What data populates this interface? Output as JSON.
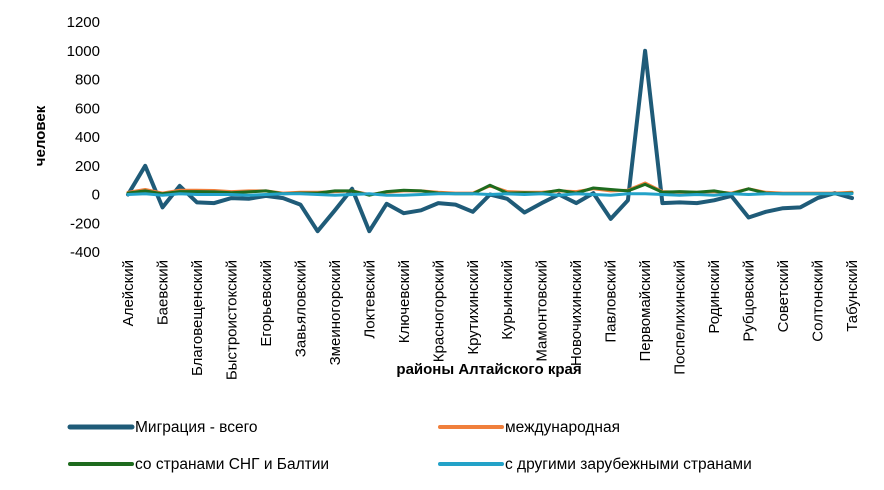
{
  "chart_data": {
    "type": "line",
    "xlabel": "районы Алтайского края",
    "ylabel": "человек",
    "ylim": [
      -400,
      1200
    ],
    "yticks": [
      -400,
      -200,
      0,
      200,
      400,
      600,
      800,
      1000,
      1200
    ],
    "grid": false,
    "legend_position": "bottom",
    "categories": [
      "Алейский",
      "",
      "Баевский",
      "",
      "Благовещенский",
      "",
      "Быстроистокский",
      "",
      "Егорьевский",
      "",
      "Завьяловский",
      "",
      "Змеиногорский",
      "",
      "Локтевский",
      "",
      "Ключевский",
      "",
      "Красногорский",
      "",
      "Крутихинский",
      "",
      "Курьинский",
      "",
      "Мамонтовский",
      "",
      "Новочихинский",
      "",
      "Павловский",
      "",
      "Первомайский",
      "",
      "Поспелихинский",
      "",
      "Родинский",
      "",
      "Рубцовский",
      "",
      "Советский",
      "",
      "Солтонский",
      "",
      "Табунский"
    ],
    "series": [
      {
        "name": "Миграция - всего",
        "color": "#1f5b78",
        "values": [
          0,
          200,
          -90,
          60,
          -55,
          -60,
          -25,
          -30,
          -10,
          -25,
          -70,
          -255,
          -110,
          40,
          -255,
          -65,
          -130,
          -110,
          -60,
          -70,
          -120,
          0,
          -30,
          -125,
          -60,
          0,
          -60,
          10,
          -170,
          -40,
          1000,
          -60,
          -55,
          -60,
          -40,
          -10,
          -160,
          -120,
          -95,
          -90,
          -25,
          10,
          -25
        ]
      },
      {
        "name": "международная",
        "color": "#f07f3c",
        "values": [
          15,
          35,
          10,
          30,
          30,
          28,
          20,
          25,
          25,
          10,
          15,
          15,
          20,
          25,
          0,
          15,
          25,
          25,
          15,
          10,
          10,
          60,
          20,
          15,
          15,
          25,
          20,
          40,
          25,
          30,
          80,
          20,
          15,
          15,
          20,
          10,
          40,
          15,
          10,
          10,
          10,
          10,
          15
        ]
      },
      {
        "name": "со странами СНГ и Балтии",
        "color": "#1e6b1e",
        "values": [
          10,
          25,
          5,
          20,
          20,
          18,
          12,
          18,
          25,
          5,
          10,
          10,
          25,
          25,
          -5,
          20,
          30,
          25,
          10,
          5,
          5,
          65,
          10,
          12,
          10,
          30,
          10,
          45,
          35,
          25,
          70,
          15,
          20,
          15,
          25,
          5,
          40,
          10,
          5,
          5,
          5,
          5,
          10
        ]
      },
      {
        "name": "с другими зарубежными странами",
        "color": "#23a2c8",
        "values": [
          0,
          5,
          -5,
          5,
          0,
          0,
          0,
          -5,
          0,
          5,
          5,
          0,
          -5,
          0,
          5,
          -5,
          -5,
          0,
          5,
          5,
          5,
          0,
          5,
          0,
          5,
          -5,
          5,
          0,
          -5,
          5,
          5,
          0,
          -5,
          0,
          -5,
          5,
          0,
          5,
          5,
          5,
          5,
          5,
          5
        ]
      }
    ]
  }
}
